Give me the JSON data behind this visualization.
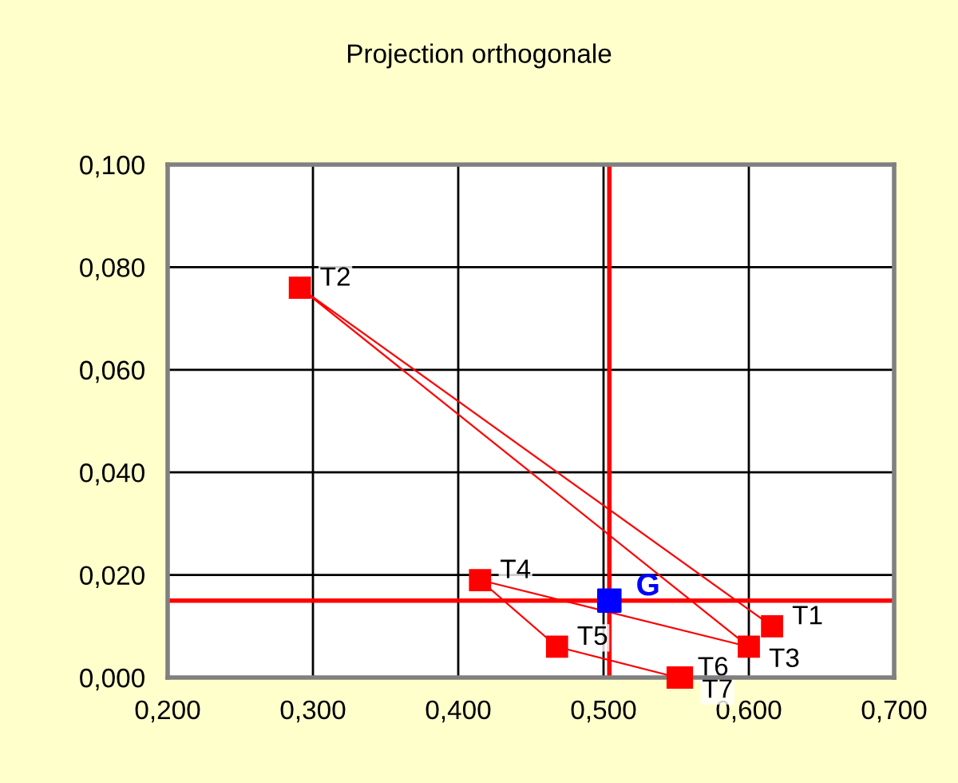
{
  "chart_data": {
    "type": "line",
    "title": "Projection orthogonale",
    "series": [
      {
        "color": "#ff0000",
        "marker": "square",
        "x": [
          0.616,
          0.291,
          0.6,
          0.415,
          0.468,
          0.551,
          0.554
        ],
        "values": [
          0.01,
          0.076,
          0.006,
          0.019,
          0.006,
          0.0,
          0.0
        ]
      },
      {
        "type": "scatter",
        "name": "G",
        "color": "#0000ff",
        "marker": "square",
        "x": [
          0.504
        ],
        "values": [
          0.015
        ]
      }
    ],
    "annotations": [
      {
        "text": "T1",
        "x": 0.616,
        "y": 0.01
      },
      {
        "text": "T2",
        "x": 0.291,
        "y": 0.076
      },
      {
        "text": "T3",
        "x": 0.6,
        "y": 0.006
      },
      {
        "text": "T4",
        "x": 0.415,
        "y": 0.019
      },
      {
        "text": "T5",
        "x": 0.468,
        "y": 0.006
      },
      {
        "text": "T6",
        "x": 0.551,
        "y": 0.0
      },
      {
        "text": "T7",
        "x": 0.554,
        "y": 0.0
      }
    ],
    "ref_lines": [
      {
        "axis": "y",
        "value": 0.015,
        "color": "#ff0000"
      },
      {
        "axis": "x",
        "value": 0.504,
        "color": "#ff0000"
      }
    ],
    "xlim": [
      0.2,
      0.7
    ],
    "xticks": [
      {
        "value": 0.2,
        "label": "0,200"
      },
      {
        "value": 0.3,
        "label": "0,300"
      },
      {
        "value": 0.4,
        "label": "0,400"
      },
      {
        "value": 0.5,
        "label": "0,500"
      },
      {
        "value": 0.6,
        "label": "0,600"
      },
      {
        "value": 0.7,
        "label": "0,700"
      }
    ],
    "ylim": [
      0,
      0.1
    ],
    "yticks": [
      {
        "value": 0,
        "label": "0,000"
      },
      {
        "value": 0.02,
        "label": "0,020"
      },
      {
        "value": 0.04,
        "label": "0,040"
      },
      {
        "value": 0.06,
        "label": "0,060"
      },
      {
        "value": 0.08,
        "label": "0,080"
      },
      {
        "value": 0.1,
        "label": "0,100"
      }
    ],
    "grid": true,
    "legend": false
  }
}
